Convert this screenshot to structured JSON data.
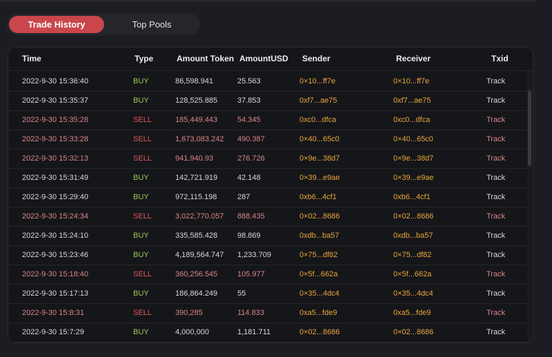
{
  "tabs": {
    "active": "Trade History",
    "inactive": "Top Pools"
  },
  "table": {
    "headers": {
      "time": "Time",
      "type": "Type",
      "amount_token": "Amount Token",
      "amount_usd": "AmountUSD",
      "sender": "Sender",
      "receiver": "Receiver",
      "txid": "Txid"
    },
    "rows": [
      {
        "time": "2022-9-30 15:36:40",
        "type": "BUY",
        "amount": "86,598.941",
        "usd": "25.563",
        "sender": "0×10...ff7e",
        "receiver": "0×10...ff7e",
        "tx": "Track"
      },
      {
        "time": "2022-9-30 15:35:37",
        "type": "BUY",
        "amount": "128,525.885",
        "usd": "37.853",
        "sender": "0xf7...ae75",
        "receiver": "0xf7...ae75",
        "tx": "Track"
      },
      {
        "time": "2022-9-30 15:35:28",
        "type": "SELL",
        "amount": "185,449.443",
        "usd": "54.345",
        "sender": "0xc0...dfca",
        "receiver": "0xc0...dfca",
        "tx": "Track"
      },
      {
        "time": "2022-9-30 15:33:28",
        "type": "SELL",
        "amount": "1,673,083.242",
        "usd": "490.387",
        "sender": "0×40...65c0",
        "receiver": "0×40...65c0",
        "tx": "Track"
      },
      {
        "time": "2022-9-30 15:32:13",
        "type": "SELL",
        "amount": "941,940.93",
        "usd": "276.726",
        "sender": "0×9e...38d7",
        "receiver": "0×9e...38d7",
        "tx": "Track"
      },
      {
        "time": "2022-9-30 15:31:49",
        "type": "BUY",
        "amount": "142,721.919",
        "usd": "42.148",
        "sender": "0×39...e9ae",
        "receiver": "0×39...e9ae",
        "tx": "Track"
      },
      {
        "time": "2022-9-30 15:29:40",
        "type": "BUY",
        "amount": "972,115.198",
        "usd": "287",
        "sender": "0xb6...4cf1",
        "receiver": "0xb6...4cf1",
        "tx": "Track"
      },
      {
        "time": "2022-9-30 15:24:34",
        "type": "SELL",
        "amount": "3,022,770.057",
        "usd": "888.435",
        "sender": "0×02...8686",
        "receiver": "0×02...8686",
        "tx": "Track"
      },
      {
        "time": "2022-9-30 15:24:10",
        "type": "BUY",
        "amount": "335,585.428",
        "usd": "98.869",
        "sender": "0xdb...ba57",
        "receiver": "0xdb...ba57",
        "tx": "Track"
      },
      {
        "time": "2022-9-30 15:23:46",
        "type": "BUY",
        "amount": "4,189,564.747",
        "usd": "1,233.709",
        "sender": "0×75...df82",
        "receiver": "0×75...df82",
        "tx": "Track"
      },
      {
        "time": "2022-9-30 15:18:40",
        "type": "SELL",
        "amount": "360,256.545",
        "usd": "105.977",
        "sender": "0×5f...662a",
        "receiver": "0×5f...662a",
        "tx": "Track"
      },
      {
        "time": "2022-9-30 15:17:13",
        "type": "BUY",
        "amount": "186,864.249",
        "usd": "55",
        "sender": "0×35...4dc4",
        "receiver": "0×35...4dc4",
        "tx": "Track"
      },
      {
        "time": "2022-9-30 15:8:31",
        "type": "SELL",
        "amount": "390,285",
        "usd": "114.833",
        "sender": "0xa5...fde9",
        "receiver": "0xa5...fde9",
        "tx": "Track"
      },
      {
        "time": "2022-9-30 15:7:29",
        "type": "BUY",
        "amount": "4,000,000",
        "usd": "1,181.711",
        "sender": "0×02...8686",
        "receiver": "0×02...8686",
        "tx": "Track"
      }
    ]
  },
  "colors": {
    "background": "#1c1d22",
    "accent": "#c8464c",
    "buy": "#9ccb58",
    "sell": "#e0565c",
    "address": "#eaa63c"
  }
}
